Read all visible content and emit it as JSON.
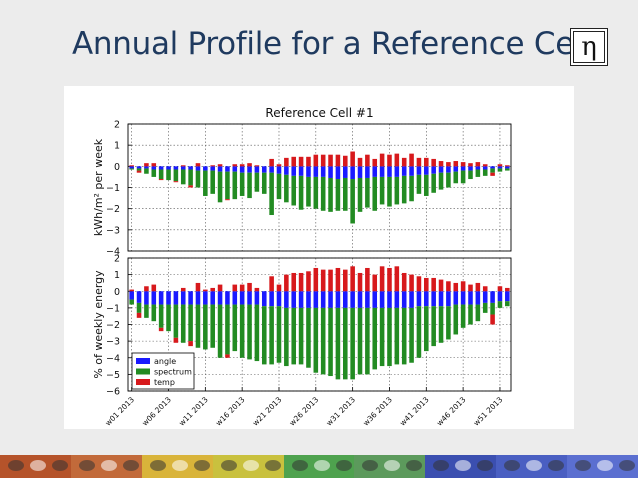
{
  "slide": {
    "title": "Annual Profile for a Reference Cell",
    "logo_symbol": "η"
  },
  "colors": {
    "angle": "#1a1aff",
    "spectrum": "#228b22",
    "temp": "#d7191c",
    "footer": [
      "#b5532a",
      "#c26a3a",
      "#d9b43a",
      "#c9c13e",
      "#4ea24e",
      "#5c9a5c",
      "#3b4fb0",
      "#4a5fc2",
      "#5b6fd0"
    ]
  },
  "chart_data": {
    "type": "bar",
    "stacked": true,
    "title": "Reference Cell #1",
    "x": [
      "w01 2013",
      "w02 2013",
      "w03 2013",
      "w04 2013",
      "w05 2013",
      "w06 2013",
      "w07 2013",
      "w08 2013",
      "w09 2013",
      "w10 2013",
      "w11 2013",
      "w12 2013",
      "w13 2013",
      "w14 2013",
      "w15 2013",
      "w16 2013",
      "w17 2013",
      "w18 2013",
      "w19 2013",
      "w20 2013",
      "w21 2013",
      "w22 2013",
      "w23 2013",
      "w24 2013",
      "w25 2013",
      "w26 2013",
      "w27 2013",
      "w28 2013",
      "w29 2013",
      "w30 2013",
      "w31 2013",
      "w32 2013",
      "w33 2013",
      "w34 2013",
      "w35 2013",
      "w36 2013",
      "w37 2013",
      "w38 2013",
      "w39 2013",
      "w40 2013",
      "w41 2013",
      "w42 2013",
      "w43 2013",
      "w44 2013",
      "w45 2013",
      "w46 2013",
      "w47 2013",
      "w48 2013",
      "w49 2013",
      "w50 2013",
      "w51 2013",
      "w52 2013"
    ],
    "xtick_labels": [
      "w01 2013",
      "w06 2013",
      "w11 2013",
      "w16 2013",
      "w21 2013",
      "w26 2013",
      "w31 2013",
      "w36 2013",
      "w41 2013",
      "w46 2013",
      "w51 2013"
    ],
    "xtick_indices": [
      0,
      5,
      10,
      15,
      20,
      25,
      30,
      35,
      40,
      45,
      50
    ],
    "legend": {
      "placement": "lower-left",
      "entries": [
        "angle",
        "spectrum",
        "temp"
      ]
    },
    "grid": true,
    "panels": [
      {
        "ylabel": "kWh/m² per week",
        "ylim": [
          -4,
          2
        ],
        "yticks": [
          -4,
          -3,
          -2,
          -1,
          0,
          1,
          2
        ],
        "ytick_labels": [
          "−4",
          "−3",
          "−2",
          "−1",
          "0",
          "1",
          "2"
        ],
        "series": [
          {
            "name": "angle",
            "values": [
              -0.1,
              -0.1,
              -0.1,
              -0.15,
              -0.15,
              -0.15,
              -0.15,
              -0.15,
              -0.15,
              -0.2,
              -0.2,
              -0.2,
              -0.25,
              -0.25,
              -0.25,
              -0.3,
              -0.3,
              -0.3,
              -0.3,
              -0.3,
              -0.35,
              -0.4,
              -0.45,
              -0.45,
              -0.5,
              -0.5,
              -0.5,
              -0.55,
              -0.6,
              -0.55,
              -0.6,
              -0.55,
              -0.55,
              -0.5,
              -0.5,
              -0.5,
              -0.5,
              -0.45,
              -0.45,
              -0.4,
              -0.4,
              -0.35,
              -0.3,
              -0.3,
              -0.25,
              -0.2,
              -0.2,
              -0.15,
              -0.15,
              -0.1,
              -0.1,
              -0.1
            ]
          },
          {
            "name": "spectrum",
            "values": [
              -0.05,
              -0.1,
              -0.25,
              -0.35,
              -0.45,
              -0.5,
              -0.55,
              -0.7,
              -0.75,
              -0.8,
              -1.2,
              -1.1,
              -1.45,
              -1.3,
              -1.3,
              -1.1,
              -1.2,
              -0.9,
              -1.0,
              -2.0,
              -1.2,
              -1.3,
              -1.4,
              -1.6,
              -1.4,
              -1.5,
              -1.6,
              -1.6,
              -1.5,
              -1.55,
              -2.1,
              -1.6,
              -1.4,
              -1.6,
              -1.3,
              -1.4,
              -1.3,
              -1.3,
              -1.2,
              -0.9,
              -1.0,
              -0.9,
              -0.8,
              -0.7,
              -0.55,
              -0.6,
              -0.4,
              -0.35,
              -0.3,
              -0.2,
              -0.15,
              -0.1
            ]
          },
          {
            "name": "temp",
            "values": [
              0.05,
              -0.1,
              0.15,
              0.15,
              -0.05,
              0.0,
              -0.05,
              0.05,
              -0.1,
              0.15,
              0.0,
              0.05,
              0.1,
              -0.05,
              0.1,
              0.1,
              0.15,
              0.05,
              0.0,
              0.35,
              0.1,
              0.4,
              0.45,
              0.45,
              0.45,
              0.55,
              0.55,
              0.55,
              0.55,
              0.5,
              0.7,
              0.4,
              0.55,
              0.35,
              0.6,
              0.55,
              0.6,
              0.4,
              0.6,
              0.4,
              0.4,
              0.35,
              0.25,
              0.2,
              0.25,
              0.2,
              0.15,
              0.2,
              0.1,
              -0.15,
              0.1,
              0.05
            ]
          }
        ]
      },
      {
        "ylabel": "% of weekly energy",
        "ylim": [
          -6,
          2
        ],
        "yticks": [
          -6,
          -5,
          -4,
          -3,
          -2,
          -1,
          0,
          1,
          2
        ],
        "ytick_labels": [
          "−6",
          "−5",
          "−4",
          "−3",
          "−2",
          "−1",
          "0",
          "1",
          "2"
        ],
        "series": [
          {
            "name": "angle",
            "values": [
              -0.5,
              -0.7,
              -0.8,
              -0.8,
              -0.8,
              -0.8,
              -0.8,
              -0.8,
              -0.8,
              -0.8,
              -0.8,
              -0.8,
              -0.8,
              -0.8,
              -0.8,
              -0.8,
              -0.8,
              -0.8,
              -0.9,
              -0.9,
              -0.9,
              -1.0,
              -1.0,
              -1.0,
              -1.0,
              -1.0,
              -1.0,
              -1.0,
              -1.0,
              -1.0,
              -1.0,
              -1.0,
              -1.0,
              -1.0,
              -1.0,
              -1.0,
              -1.0,
              -1.0,
              -1.0,
              -0.9,
              -0.9,
              -0.9,
              -0.9,
              -0.9,
              -0.8,
              -0.8,
              -0.8,
              -0.8,
              -0.7,
              -0.7,
              -0.6,
              -0.6
            ]
          },
          {
            "name": "spectrum",
            "values": [
              -0.3,
              -0.6,
              -0.8,
              -1.0,
              -1.4,
              -1.6,
              -2.0,
              -2.3,
              -2.2,
              -2.6,
              -2.7,
              -2.6,
              -3.2,
              -3.0,
              -2.8,
              -3.2,
              -3.3,
              -3.4,
              -3.5,
              -3.5,
              -3.4,
              -3.5,
              -3.4,
              -3.4,
              -3.6,
              -3.9,
              -4.0,
              -4.1,
              -4.3,
              -4.3,
              -4.3,
              -4.0,
              -4.0,
              -3.7,
              -3.5,
              -3.5,
              -3.4,
              -3.4,
              -3.3,
              -3.1,
              -2.7,
              -2.4,
              -2.2,
              -2.0,
              -1.8,
              -1.4,
              -1.2,
              -1.0,
              -0.6,
              -0.7,
              -0.4,
              -0.3
            ]
          },
          {
            "name": "temp",
            "values": [
              0.1,
              -0.3,
              0.3,
              0.4,
              -0.2,
              0.0,
              -0.3,
              0.2,
              -0.3,
              0.5,
              0.1,
              0.2,
              0.4,
              -0.2,
              0.4,
              0.4,
              0.5,
              0.2,
              0.0,
              0.9,
              0.4,
              1.0,
              1.1,
              1.1,
              1.2,
              1.4,
              1.3,
              1.3,
              1.4,
              1.3,
              1.5,
              1.1,
              1.4,
              1.0,
              1.5,
              1.4,
              1.5,
              1.1,
              1.0,
              0.9,
              0.8,
              0.8,
              0.7,
              0.6,
              0.5,
              0.6,
              0.4,
              0.5,
              0.3,
              -0.6,
              0.3,
              0.2
            ]
          }
        ]
      }
    ]
  }
}
